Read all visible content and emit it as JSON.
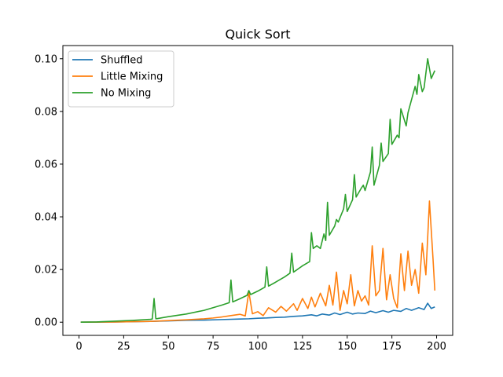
{
  "chart_data": {
    "type": "line",
    "title": "Quick Sort",
    "xlabel": "",
    "ylabel": "",
    "xlim": [
      -9,
      209
    ],
    "ylim": [
      -0.005,
      0.105
    ],
    "xticks": [
      0,
      25,
      50,
      75,
      100,
      125,
      150,
      175,
      200
    ],
    "yticks": [
      0.0,
      0.02,
      0.04,
      0.06,
      0.08,
      0.1
    ],
    "ytick_decimals": 2,
    "grid": false,
    "legend_position": "top-left",
    "series": [
      {
        "name": "Shuffled",
        "color": "#1f77b4",
        "x": [
          1,
          10,
          20,
          30,
          40,
          50,
          60,
          70,
          80,
          90,
          95,
          100,
          105,
          110,
          115,
          120,
          125,
          130,
          133,
          136,
          140,
          143,
          146,
          150,
          153,
          156,
          160,
          163,
          166,
          170,
          173,
          176,
          180,
          183,
          186,
          190,
          193,
          195,
          197,
          199
        ],
        "y": [
          0.0,
          5e-05,
          0.0001,
          0.0002,
          0.0003,
          0.0005,
          0.0007,
          0.0008,
          0.001,
          0.0012,
          0.0013,
          0.0015,
          0.0016,
          0.0018,
          0.0019,
          0.0022,
          0.0024,
          0.0028,
          0.0024,
          0.0031,
          0.0027,
          0.0035,
          0.0029,
          0.0038,
          0.0031,
          0.0035,
          0.0033,
          0.0042,
          0.0036,
          0.0044,
          0.0038,
          0.0045,
          0.0041,
          0.0052,
          0.0045,
          0.0055,
          0.0048,
          0.0072,
          0.0052,
          0.0058
        ]
      },
      {
        "name": "Little Mixing",
        "color": "#ff7f0e",
        "x": [
          1,
          20,
          40,
          50,
          60,
          70,
          75,
          80,
          85,
          90,
          93,
          95,
          97,
          100,
          103,
          106,
          110,
          113,
          116,
          120,
          122,
          125,
          128,
          130,
          132,
          135,
          138,
          140,
          142,
          144,
          146,
          148,
          150,
          152,
          154,
          156,
          158,
          160,
          162,
          164,
          166,
          168,
          170,
          172,
          174,
          176,
          178,
          180,
          182,
          184,
          186,
          188,
          190,
          192,
          194,
          196,
          198,
          199
        ],
        "y": [
          0.0,
          0.0001,
          0.0003,
          0.0006,
          0.0009,
          0.0013,
          0.0016,
          0.002,
          0.0025,
          0.003,
          0.0024,
          0.0115,
          0.0032,
          0.004,
          0.0025,
          0.0055,
          0.0038,
          0.006,
          0.0042,
          0.007,
          0.0045,
          0.009,
          0.0052,
          0.0095,
          0.0058,
          0.011,
          0.0062,
          0.014,
          0.0065,
          0.019,
          0.0045,
          0.012,
          0.007,
          0.018,
          0.0062,
          0.012,
          0.008,
          0.01,
          0.0065,
          0.029,
          0.01,
          0.012,
          0.028,
          0.0085,
          0.018,
          0.009,
          0.0055,
          0.026,
          0.012,
          0.027,
          0.014,
          0.02,
          0.011,
          0.03,
          0.018,
          0.046,
          0.024,
          0.012
        ]
      },
      {
        "name": "No Mixing",
        "color": "#2ca02c",
        "x": [
          1,
          10,
          20,
          30,
          40,
          41,
          42,
          43,
          44,
          50,
          60,
          70,
          80,
          84,
          85,
          86,
          90,
          94,
          95,
          96,
          100,
          104,
          105,
          106,
          110,
          115,
          118,
          119,
          120,
          125,
          129,
          130,
          131,
          133,
          135,
          137,
          138,
          139,
          140,
          143,
          144,
          145,
          148,
          149,
          150,
          153,
          154,
          155,
          158,
          159,
          160,
          163,
          164,
          165,
          168,
          169,
          170,
          173,
          174,
          175,
          178,
          179,
          180,
          183,
          184,
          185,
          188,
          189,
          190,
          192,
          193,
          195,
          197,
          199
        ],
        "y": [
          0.0,
          0.0001,
          0.0004,
          0.0007,
          0.0011,
          0.0012,
          0.009,
          0.0013,
          0.0014,
          0.0021,
          0.0031,
          0.0045,
          0.0065,
          0.0074,
          0.016,
          0.0077,
          0.0089,
          0.0102,
          0.012,
          0.0105,
          0.0118,
          0.0133,
          0.021,
          0.0137,
          0.0152,
          0.0172,
          0.0186,
          0.0262,
          0.019,
          0.0214,
          0.023,
          0.034,
          0.028,
          0.029,
          0.028,
          0.0335,
          0.031,
          0.0455,
          0.033,
          0.0365,
          0.039,
          0.038,
          0.043,
          0.0485,
          0.042,
          0.0465,
          0.056,
          0.0475,
          0.051,
          0.052,
          0.05,
          0.057,
          0.0665,
          0.052,
          0.0595,
          0.068,
          0.061,
          0.064,
          0.077,
          0.0675,
          0.071,
          0.07,
          0.081,
          0.0745,
          0.0795,
          0.082,
          0.0895,
          0.0865,
          0.094,
          0.0875,
          0.089,
          0.1,
          0.0925,
          0.0955
        ]
      }
    ]
  }
}
